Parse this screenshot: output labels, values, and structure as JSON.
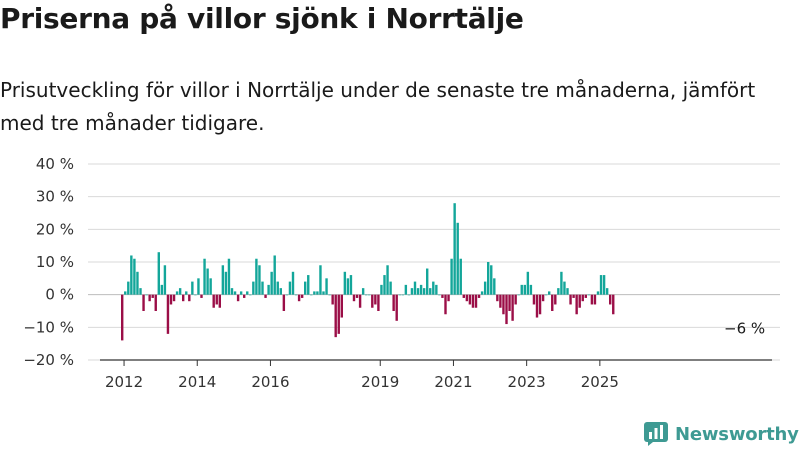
{
  "header": {
    "title": "Priserna på villor sjönk i Norrtälje",
    "subtitle": "Prisutveckling för villor i Norrtälje under de senaste tre månaderna, jämfört med tre månader tidigare."
  },
  "brand": {
    "name": "Newsworthy",
    "color": "#3e9a93"
  },
  "colors": {
    "positive": "#13a69a",
    "negative": "#9b0e47",
    "grid": "#d9d9d9",
    "axis": "#333333"
  },
  "chart_data": {
    "type": "bar",
    "x_start": "2011-12",
    "x_end": "2025-11",
    "ylim": [
      -20,
      40
    ],
    "yticks": [
      -20,
      -10,
      0,
      10,
      20,
      30,
      40
    ],
    "ytick_labels": [
      "−20 %",
      "−10 %",
      "0 %",
      "10 %",
      "20 %",
      "30 %",
      "40 %"
    ],
    "xtick_labels": [
      "2012",
      "2014",
      "2016",
      "2019",
      "2021",
      "2023",
      "2025"
    ],
    "xtick_months": [
      "2012-01",
      "2014-01",
      "2016-01",
      "2019-01",
      "2021-01",
      "2023-01",
      "2025-01"
    ],
    "end_label": "−6 %",
    "values": [
      -14,
      1,
      4,
      12,
      11,
      7,
      2,
      -5,
      0,
      -2,
      -1,
      -5,
      13,
      3,
      9,
      -12,
      -3,
      -2,
      1,
      2,
      -2,
      1,
      -2,
      4,
      0,
      5,
      -1,
      11,
      8,
      5,
      -4,
      -3,
      -4,
      9,
      7,
      11,
      2,
      1,
      -2,
      1,
      -1,
      1,
      0,
      4,
      11,
      9,
      4,
      -1,
      3,
      7,
      12,
      4,
      2,
      -5,
      0,
      4,
      7,
      0,
      -2,
      -1,
      4,
      6,
      0,
      1,
      1,
      9,
      1,
      5,
      0,
      -3,
      -13,
      -12,
      -7,
      7,
      5,
      6,
      -2,
      -1,
      -4,
      2,
      0,
      0,
      -4,
      -3,
      -5,
      3,
      6,
      9,
      4,
      -5,
      -8,
      0,
      0,
      3,
      0,
      2,
      4,
      2,
      3,
      2,
      8,
      2,
      4,
      3,
      0,
      -1,
      -6,
      -2,
      11,
      28,
      22,
      11,
      -1,
      -2,
      -3,
      -4,
      -4,
      -1,
      1,
      4,
      10,
      9,
      5,
      -2,
      -4,
      -6,
      -9,
      -5,
      -8,
      -3,
      0,
      3,
      3,
      7,
      3,
      -3,
      -7,
      -6,
      -2,
      0,
      1,
      -5,
      -3,
      2,
      7,
      4,
      2,
      -3,
      -1,
      -6,
      -4,
      -2,
      -1,
      0,
      -3,
      -3,
      1,
      6,
      6,
      2,
      -3,
      -6
    ]
  }
}
